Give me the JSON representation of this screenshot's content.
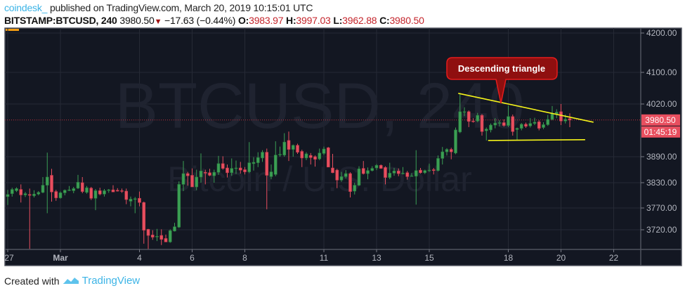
{
  "header": {
    "author": "coindesk_",
    "published_text": "published on TradingView.com, March 20, 2019 10:15:01 UTC",
    "symbol": "BITSTAMP:BTCUSD, 240",
    "last_price": "3980.50",
    "change": "−17.63 (−0.44%)",
    "change_direction_icon": "triangle-down-icon",
    "open_label": "O:",
    "open": "3983.97",
    "high_label": "H:",
    "high": "3997.03",
    "low_label": "L:",
    "low": "3962.88",
    "close_label": "C:",
    "close": "3980.50"
  },
  "footer": {
    "created_with": "Created with",
    "brand": "TradingView",
    "logo_icon": "tradingview-cloud-icon"
  },
  "chart_data": {
    "type": "candlestick",
    "watermark_symbol": "BTCUSD, 240",
    "watermark_description": "Bitcoin / U.S. Dollar",
    "interval": "240",
    "start": "2019-02-27T00:00",
    "ylim": [
      3660,
      4210
    ],
    "grid": true,
    "colors": {
      "up": "#3b9f54",
      "down": "#e84f5f",
      "background": "#131722",
      "grid": "#262a35",
      "trendline": "#f5f31a",
      "callout": "#8f0f0f",
      "price_label": "#e84f5f"
    },
    "y_ticks": [
      4200,
      4100,
      4020,
      3890,
      3830,
      3770,
      3720
    ],
    "y_tick_labels": [
      "4200.00",
      "4100.00",
      "4020.00",
      "3890.00",
      "3830.00",
      "3770.00",
      "3720.00"
    ],
    "x_ticks": [
      {
        "label": "27",
        "date": "2019-02-27"
      },
      {
        "label": "Mar",
        "date": "2019-03-01"
      },
      {
        "label": "4",
        "date": "2019-03-04"
      },
      {
        "label": "6",
        "date": "2019-03-06"
      },
      {
        "label": "8",
        "date": "2019-03-08"
      },
      {
        "label": "11",
        "date": "2019-03-11"
      },
      {
        "label": "13",
        "date": "2019-03-13"
      },
      {
        "label": "15",
        "date": "2019-03-15"
      },
      {
        "label": "18",
        "date": "2019-03-18"
      },
      {
        "label": "20",
        "date": "2019-03-20"
      },
      {
        "label": "22",
        "date": "2019-03-22"
      }
    ],
    "last_price_label": "3980.50",
    "countdown_label": "01:45:19",
    "annotation": {
      "text": "Descending triangle"
    },
    "trendlines": [
      {
        "name": "resistance",
        "from": {
          "bar": 102.6,
          "price": 4047
        },
        "to": {
          "bar": 133.4,
          "price": 3975
        }
      },
      {
        "name": "support",
        "from": {
          "bar": 109.4,
          "price": 3930
        },
        "to": {
          "bar": 131.5,
          "price": 3932
        }
      }
    ],
    "ohlc": [
      [
        3797,
        3813,
        3777,
        3802
      ],
      [
        3804,
        3818,
        3797,
        3814
      ],
      [
        3811,
        3819,
        3808,
        3816
      ],
      [
        3814,
        3826,
        3783,
        3801
      ],
      [
        3801,
        3808,
        3796,
        3804
      ],
      [
        3802,
        3816,
        3676,
        3800
      ],
      [
        3799,
        3812,
        3795,
        3803
      ],
      [
        3803,
        3810,
        3800,
        3807
      ],
      [
        3807,
        3843,
        3805,
        3824
      ],
      [
        3824,
        3900,
        3758,
        3843
      ],
      [
        3847,
        3862,
        3785,
        3808
      ],
      [
        3809,
        3813,
        3787,
        3794
      ],
      [
        3794,
        3809,
        3792,
        3806
      ],
      [
        3806,
        3814,
        3800,
        3812
      ],
      [
        3812,
        3822,
        3810,
        3813
      ],
      [
        3811,
        3820,
        3805,
        3816
      ],
      [
        3817,
        3848,
        3815,
        3831
      ],
      [
        3830,
        3843,
        3805,
        3809
      ],
      [
        3807,
        3822,
        3804,
        3818
      ],
      [
        3817,
        3820,
        3789,
        3793
      ],
      [
        3793,
        3815,
        3765,
        3811
      ],
      [
        3811,
        3818,
        3800,
        3803
      ],
      [
        3803,
        3815,
        3797,
        3811
      ],
      [
        3812,
        3815,
        3806,
        3813
      ],
      [
        3813,
        3824,
        3809,
        3808
      ],
      [
        3812,
        3817,
        3809,
        3810
      ],
      [
        3811,
        3816,
        3806,
        3810
      ],
      [
        3810,
        3816,
        3779,
        3790
      ],
      [
        3786,
        3797,
        3774,
        3791
      ],
      [
        3792,
        3796,
        3758,
        3792
      ],
      [
        3793,
        3809,
        3774,
        3783
      ],
      [
        3783,
        3785,
        3688,
        3719
      ],
      [
        3721,
        3722,
        3675,
        3707
      ],
      [
        3708,
        3719,
        3697,
        3703
      ],
      [
        3705,
        3722,
        3694,
        3705
      ],
      [
        3707,
        3721,
        3685,
        3698
      ],
      [
        3700,
        3709,
        3692,
        3692
      ],
      [
        3692,
        3721,
        3690,
        3718
      ],
      [
        3717,
        3736,
        3716,
        3727
      ],
      [
        3726,
        3833,
        3724,
        3826
      ],
      [
        3826,
        3880,
        3810,
        3851
      ],
      [
        3851,
        3855,
        3823,
        3846
      ],
      [
        3847,
        3863,
        3820,
        3820
      ],
      [
        3820,
        3860,
        3812,
        3843
      ],
      [
        3843,
        3898,
        3830,
        3857
      ],
      [
        3854,
        3860,
        3826,
        3852
      ],
      [
        3853,
        3862,
        3845,
        3847
      ],
      [
        3846,
        3860,
        3830,
        3854
      ],
      [
        3854,
        3892,
        3848,
        3874
      ],
      [
        3874,
        3891,
        3860,
        3863
      ],
      [
        3864,
        3872,
        3842,
        3853
      ],
      [
        3853,
        3886,
        3846,
        3863
      ],
      [
        3864,
        3881,
        3850,
        3864
      ],
      [
        3864,
        3878,
        3851,
        3859
      ],
      [
        3860,
        3866,
        3849,
        3855
      ],
      [
        3855,
        3926,
        3852,
        3876
      ],
      [
        3874,
        3889,
        3858,
        3877
      ],
      [
        3876,
        3901,
        3866,
        3888
      ],
      [
        3887,
        3906,
        3878,
        3901
      ],
      [
        3901,
        3910,
        3767,
        3847
      ],
      [
        3844,
        3872,
        3838,
        3855
      ],
      [
        3849,
        3928,
        3845,
        3894
      ],
      [
        3896,
        3915,
        3890,
        3896
      ],
      [
        3894,
        3948,
        3890,
        3926
      ],
      [
        3930,
        3952,
        3880,
        3908
      ],
      [
        3908,
        3920,
        3890,
        3918
      ],
      [
        3918,
        3922,
        3897,
        3901
      ],
      [
        3903,
        3907,
        3866,
        3887
      ],
      [
        3887,
        3901,
        3882,
        3897
      ],
      [
        3893,
        3899,
        3872,
        3888
      ],
      [
        3890,
        3893,
        3867,
        3884
      ],
      [
        3885,
        3910,
        3882,
        3899
      ],
      [
        3898,
        3915,
        3894,
        3909
      ],
      [
        3912,
        3914,
        3866,
        3866
      ],
      [
        3864,
        3897,
        3852,
        3853
      ],
      [
        3859,
        3862,
        3817,
        3836
      ],
      [
        3836,
        3855,
        3832,
        3844
      ],
      [
        3844,
        3859,
        3840,
        3851
      ],
      [
        3851,
        3854,
        3795,
        3809
      ],
      [
        3810,
        3830,
        3802,
        3824
      ],
      [
        3824,
        3868,
        3822,
        3862
      ],
      [
        3863,
        3880,
        3849,
        3851
      ],
      [
        3851,
        3865,
        3838,
        3858
      ],
      [
        3858,
        3868,
        3856,
        3863
      ],
      [
        3864,
        3873,
        3859,
        3870
      ],
      [
        3870,
        3872,
        3862,
        3863
      ],
      [
        3865,
        3868,
        3826,
        3842
      ],
      [
        3842,
        3876,
        3838,
        3852
      ],
      [
        3852,
        3864,
        3846,
        3857
      ],
      [
        3857,
        3863,
        3845,
        3851
      ],
      [
        3852,
        3866,
        3849,
        3852
      ],
      [
        3853,
        3857,
        3837,
        3844
      ],
      [
        3846,
        3852,
        3844,
        3846
      ],
      [
        3845,
        3906,
        3778,
        3858
      ],
      [
        3859,
        3864,
        3851,
        3853
      ],
      [
        3853,
        3860,
        3850,
        3858
      ],
      [
        3859,
        3874,
        3855,
        3859
      ],
      [
        3860,
        3864,
        3849,
        3858
      ],
      [
        3858,
        3893,
        3856,
        3886
      ],
      [
        3886,
        3914,
        3872,
        3902
      ],
      [
        3902,
        3911,
        3893,
        3908
      ],
      [
        3908,
        3912,
        3884,
        3902
      ],
      [
        3899,
        3962,
        3896,
        3956
      ],
      [
        3951,
        4045,
        3948,
        4001
      ],
      [
        4001,
        4012,
        3990,
        4001
      ],
      [
        4001,
        4004,
        3963,
        3977
      ],
      [
        3978,
        3985,
        3974,
        3977
      ],
      [
        3978,
        3998,
        3975,
        3992
      ],
      [
        3992,
        3995,
        3942,
        3952
      ],
      [
        3954,
        3962,
        3930,
        3958
      ],
      [
        3956,
        3972,
        3950,
        3968
      ],
      [
        3968,
        3985,
        3960,
        3973
      ],
      [
        3974,
        3980,
        3965,
        3974
      ],
      [
        3974,
        3982,
        3964,
        3967
      ],
      [
        3967,
        4016,
        3963,
        3989
      ],
      [
        3989,
        3994,
        3942,
        3952
      ],
      [
        3957,
        3962,
        3930,
        3960
      ],
      [
        3960,
        3973,
        3955,
        3970
      ],
      [
        3970,
        3974,
        3961,
        3965
      ],
      [
        3966,
        3985,
        3962,
        3972
      ],
      [
        3972,
        3986,
        3968,
        3975
      ],
      [
        3976,
        3980,
        3955,
        3960
      ],
      [
        3962,
        3975,
        3958,
        3969
      ],
      [
        3969,
        3993,
        3966,
        3982
      ],
      [
        3982,
        4015,
        3980,
        3996
      ],
      [
        3996,
        4007,
        3985,
        4000
      ],
      [
        4001,
        4020,
        3968,
        3978
      ],
      [
        3978,
        3994,
        3972,
        3982
      ],
      [
        3983.97,
        3997.03,
        3962.88,
        3980.5
      ]
    ]
  }
}
